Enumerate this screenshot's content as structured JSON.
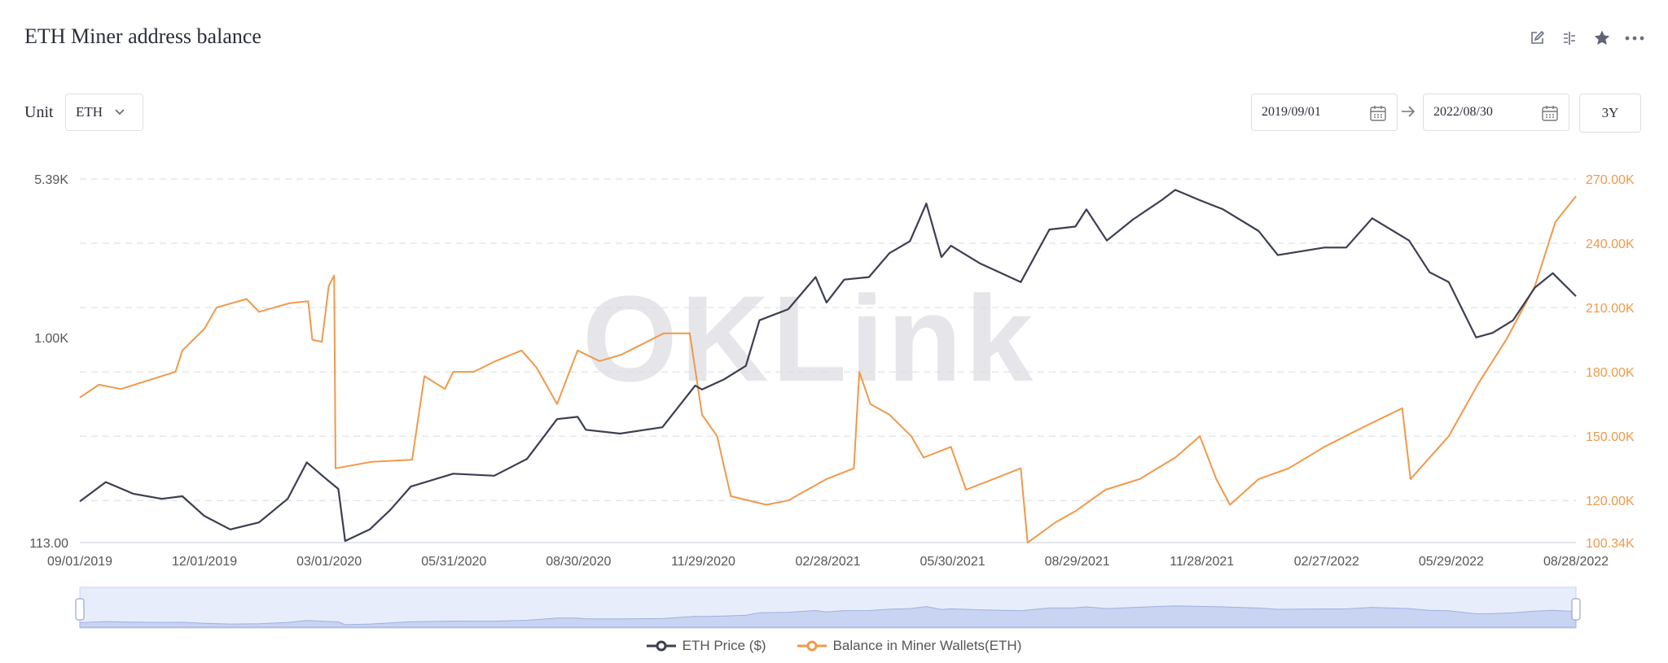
{
  "header": {
    "title": "ETH Miner address balance"
  },
  "toolbar": {
    "icons": [
      "edit-icon",
      "split-view-icon",
      "star-icon",
      "more-icon"
    ]
  },
  "unit": {
    "label": "Unit",
    "selected": "ETH"
  },
  "date_range": {
    "start": "2019/09/01",
    "end": "2022/08/30",
    "preset": "3Y"
  },
  "watermark": "OKLink",
  "colors": {
    "price": "#3b3f50",
    "balance": "#f0994a",
    "grid": "#d8dbe4",
    "slider": "#e8edfb"
  },
  "chart_data": {
    "type": "line",
    "title": "ETH Miner address balance",
    "x_ticks": [
      "09/01/2019",
      "12/01/2019",
      "03/01/2020",
      "05/31/2020",
      "08/30/2020",
      "11/29/2020",
      "02/28/2021",
      "05/30/2021",
      "08/29/2021",
      "11/28/2021",
      "02/27/2022",
      "05/29/2022",
      "08/28/2022"
    ],
    "x_range": [
      "2019-09-01",
      "2022-08-30"
    ],
    "y_left": {
      "ticks": [
        "113.00",
        "1.00K",
        "5.39K"
      ],
      "scale": "log",
      "range": [
        113,
        5390
      ]
    },
    "y_right": {
      "ticks": [
        "100.34K",
        "120.00K",
        "150.00K",
        "180.00K",
        "210.00K",
        "240.00K",
        "270.00K"
      ],
      "range": [
        100340,
        270000
      ]
    },
    "grid": true,
    "legend_position": "bottom-center",
    "series": [
      {
        "name": "ETH Price ($)",
        "axis": "left",
        "points": [
          [
            "2019-09-01",
            175
          ],
          [
            "2019-09-20",
            215
          ],
          [
            "2019-10-10",
            190
          ],
          [
            "2019-10-31",
            180
          ],
          [
            "2019-11-15",
            185
          ],
          [
            "2019-12-01",
            150
          ],
          [
            "2019-12-20",
            130
          ],
          [
            "2020-01-10",
            140
          ],
          [
            "2020-01-31",
            180
          ],
          [
            "2020-02-14",
            265
          ],
          [
            "2020-02-29",
            220
          ],
          [
            "2020-03-08",
            200
          ],
          [
            "2020-03-13",
            115
          ],
          [
            "2020-03-31",
            130
          ],
          [
            "2020-04-15",
            160
          ],
          [
            "2020-04-30",
            205
          ],
          [
            "2020-05-31",
            235
          ],
          [
            "2020-06-30",
            230
          ],
          [
            "2020-07-24",
            275
          ],
          [
            "2020-08-15",
            420
          ],
          [
            "2020-08-30",
            430
          ],
          [
            "2020-09-05",
            375
          ],
          [
            "2020-09-30",
            360
          ],
          [
            "2020-10-31",
            385
          ],
          [
            "2020-11-24",
            600
          ],
          [
            "2020-11-29",
            575
          ],
          [
            "2020-12-15",
            640
          ],
          [
            "2020-12-31",
            740
          ],
          [
            "2021-01-10",
            1200
          ],
          [
            "2021-01-31",
            1350
          ],
          [
            "2021-02-20",
            1900
          ],
          [
            "2021-02-28",
            1450
          ],
          [
            "2021-03-13",
            1850
          ],
          [
            "2021-03-31",
            1900
          ],
          [
            "2021-04-15",
            2450
          ],
          [
            "2021-04-30",
            2780
          ],
          [
            "2021-05-12",
            4150
          ],
          [
            "2021-05-23",
            2350
          ],
          [
            "2021-05-30",
            2650
          ],
          [
            "2021-06-20",
            2200
          ],
          [
            "2021-07-20",
            1800
          ],
          [
            "2021-08-10",
            3150
          ],
          [
            "2021-08-29",
            3250
          ],
          [
            "2021-09-06",
            3900
          ],
          [
            "2021-09-21",
            2800
          ],
          [
            "2021-10-10",
            3500
          ],
          [
            "2021-10-31",
            4300
          ],
          [
            "2021-11-10",
            4800
          ],
          [
            "2021-11-28",
            4300
          ],
          [
            "2021-12-15",
            3900
          ],
          [
            "2022-01-10",
            3100
          ],
          [
            "2022-01-24",
            2400
          ],
          [
            "2022-02-27",
            2600
          ],
          [
            "2022-03-15",
            2600
          ],
          [
            "2022-04-03",
            3550
          ],
          [
            "2022-04-30",
            2800
          ],
          [
            "2022-05-15",
            2000
          ],
          [
            "2022-05-29",
            1800
          ],
          [
            "2022-06-18",
            1000
          ],
          [
            "2022-06-30",
            1050
          ],
          [
            "2022-07-15",
            1200
          ],
          [
            "2022-07-31",
            1700
          ],
          [
            "2022-08-13",
            1980
          ],
          [
            "2022-08-30",
            1550
          ]
        ]
      },
      {
        "name": "Balance in Miner Wallets(ETH)",
        "axis": "right",
        "points": [
          [
            "2019-09-01",
            168000
          ],
          [
            "2019-09-15",
            174000
          ],
          [
            "2019-10-01",
            172000
          ],
          [
            "2019-11-10",
            180000
          ],
          [
            "2019-11-15",
            190000
          ],
          [
            "2019-12-01",
            200000
          ],
          [
            "2019-12-10",
            210000
          ],
          [
            "2020-01-01",
            214000
          ],
          [
            "2020-01-10",
            208000
          ],
          [
            "2020-02-01",
            212000
          ],
          [
            "2020-02-15",
            213000
          ],
          [
            "2020-02-18",
            195000
          ],
          [
            "2020-02-25",
            194000
          ],
          [
            "2020-03-01",
            220000
          ],
          [
            "2020-03-05",
            225000
          ],
          [
            "2020-03-06",
            135000
          ],
          [
            "2020-04-01",
            138000
          ],
          [
            "2020-05-01",
            139000
          ],
          [
            "2020-05-10",
            178000
          ],
          [
            "2020-05-25",
            172000
          ],
          [
            "2020-05-31",
            180000
          ],
          [
            "2020-06-15",
            180000
          ],
          [
            "2020-07-01",
            185000
          ],
          [
            "2020-07-20",
            190000
          ],
          [
            "2020-07-31",
            182000
          ],
          [
            "2020-08-15",
            165000
          ],
          [
            "2020-08-30",
            190000
          ],
          [
            "2020-09-15",
            185000
          ],
          [
            "2020-10-01",
            188000
          ],
          [
            "2020-11-01",
            198000
          ],
          [
            "2020-11-20",
            198000
          ],
          [
            "2020-11-29",
            160000
          ],
          [
            "2020-12-10",
            150000
          ],
          [
            "2020-12-20",
            122000
          ],
          [
            "2021-01-15",
            118000
          ],
          [
            "2021-01-31",
            120000
          ],
          [
            "2021-02-28",
            130000
          ],
          [
            "2021-03-20",
            135000
          ],
          [
            "2021-03-24",
            180000
          ],
          [
            "2021-04-01",
            165000
          ],
          [
            "2021-04-15",
            160000
          ],
          [
            "2021-05-01",
            150000
          ],
          [
            "2021-05-10",
            140000
          ],
          [
            "2021-05-30",
            145000
          ],
          [
            "2021-06-10",
            125000
          ],
          [
            "2021-06-30",
            130000
          ],
          [
            "2021-07-20",
            135000
          ],
          [
            "2021-07-25",
            100340
          ],
          [
            "2021-08-15",
            110000
          ],
          [
            "2021-08-29",
            115000
          ],
          [
            "2021-09-20",
            125000
          ],
          [
            "2021-10-15",
            130000
          ],
          [
            "2021-11-10",
            140000
          ],
          [
            "2021-11-28",
            150000
          ],
          [
            "2021-12-10",
            130000
          ],
          [
            "2021-12-20",
            118000
          ],
          [
            "2022-01-10",
            130000
          ],
          [
            "2022-02-01",
            135000
          ],
          [
            "2022-02-27",
            145000
          ],
          [
            "2022-03-30",
            155000
          ],
          [
            "2022-04-25",
            163000
          ],
          [
            "2022-05-01",
            130000
          ],
          [
            "2022-05-29",
            150000
          ],
          [
            "2022-06-20",
            175000
          ],
          [
            "2022-07-10",
            195000
          ],
          [
            "2022-07-31",
            220000
          ],
          [
            "2022-08-15",
            250000
          ],
          [
            "2022-08-30",
            262000
          ]
        ]
      }
    ]
  }
}
